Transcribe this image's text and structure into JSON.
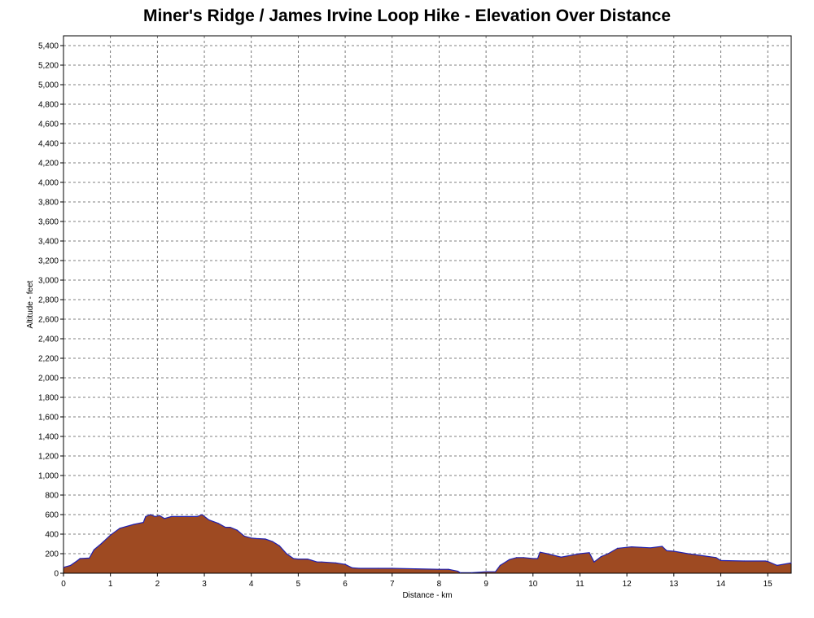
{
  "chart_data": {
    "type": "area",
    "title": "Miner's Ridge / James Irvine Loop Hike - Elevation Over Distance",
    "xlabel": "Distance - km",
    "ylabel": "Altitude - feet",
    "xlim": [
      0,
      15.5
    ],
    "ylim": [
      0,
      5500
    ],
    "xticks": [
      0,
      1,
      2,
      3,
      4,
      5,
      6,
      7,
      8,
      9,
      10,
      11,
      12,
      13,
      14,
      15
    ],
    "xtick_labels": [
      "0",
      "1",
      "2",
      "3",
      "4",
      "5",
      "6",
      "7",
      "8",
      "9",
      "10",
      "11",
      "12",
      "13",
      "14",
      "15"
    ],
    "yticks": [
      0,
      200,
      400,
      600,
      800,
      1000,
      1200,
      1400,
      1600,
      1800,
      2000,
      2200,
      2400,
      2600,
      2800,
      3000,
      3200,
      3400,
      3600,
      3800,
      4000,
      4200,
      4400,
      4600,
      4800,
      5000,
      5200,
      5400
    ],
    "ytick_labels": [
      "0",
      "200",
      "400",
      "600",
      "800",
      "1,000",
      "1,200",
      "1,400",
      "1,600",
      "1,800",
      "2,000",
      "2,200",
      "2,400",
      "2,600",
      "2,800",
      "3,000",
      "3,200",
      "3,400",
      "3,600",
      "3,800",
      "4,000",
      "4,200",
      "4,400",
      "4,600",
      "4,800",
      "5,000",
      "5,200",
      "5,400"
    ],
    "grid": true,
    "fill_color": "#9e4a22",
    "line_color": "#2020b0",
    "x": [
      0,
      0.15,
      0.3,
      0.35,
      0.55,
      0.65,
      0.8,
      1.0,
      1.2,
      1.5,
      1.7,
      1.75,
      1.85,
      1.95,
      2.05,
      2.15,
      2.3,
      2.6,
      2.85,
      2.95,
      3.1,
      3.3,
      3.45,
      3.55,
      3.7,
      3.85,
      4.0,
      4.1,
      4.3,
      4.45,
      4.6,
      4.75,
      4.9,
      5.0,
      5.2,
      5.4,
      5.5,
      5.8,
      6.0,
      6.15,
      6.3,
      6.7,
      7.0,
      7.5,
      8.0,
      8.2,
      8.4,
      8.45,
      8.7,
      9.0,
      9.2,
      9.3,
      9.5,
      9.65,
      9.8,
      10.0,
      10.1,
      10.15,
      10.3,
      10.6,
      11.0,
      11.2,
      11.3,
      11.45,
      11.6,
      11.8,
      12.0,
      12.1,
      12.3,
      12.5,
      12.75,
      12.85,
      13.0,
      13.3,
      13.6,
      13.9,
      14.0,
      14.5,
      14.95,
      15.0,
      15.2,
      15.5
    ],
    "y": [
      60,
      80,
      130,
      150,
      155,
      240,
      300,
      390,
      460,
      500,
      520,
      580,
      600,
      580,
      590,
      560,
      580,
      580,
      580,
      600,
      545,
      510,
      470,
      470,
      440,
      380,
      360,
      355,
      350,
      325,
      280,
      200,
      150,
      145,
      145,
      115,
      115,
      105,
      90,
      55,
      50,
      50,
      50,
      45,
      40,
      40,
      20,
      5,
      5,
      15,
      15,
      80,
      140,
      160,
      160,
      150,
      150,
      215,
      200,
      165,
      200,
      210,
      115,
      170,
      200,
      255,
      265,
      270,
      265,
      260,
      275,
      230,
      225,
      200,
      180,
      160,
      130,
      125,
      125,
      120,
      80,
      105
    ]
  }
}
